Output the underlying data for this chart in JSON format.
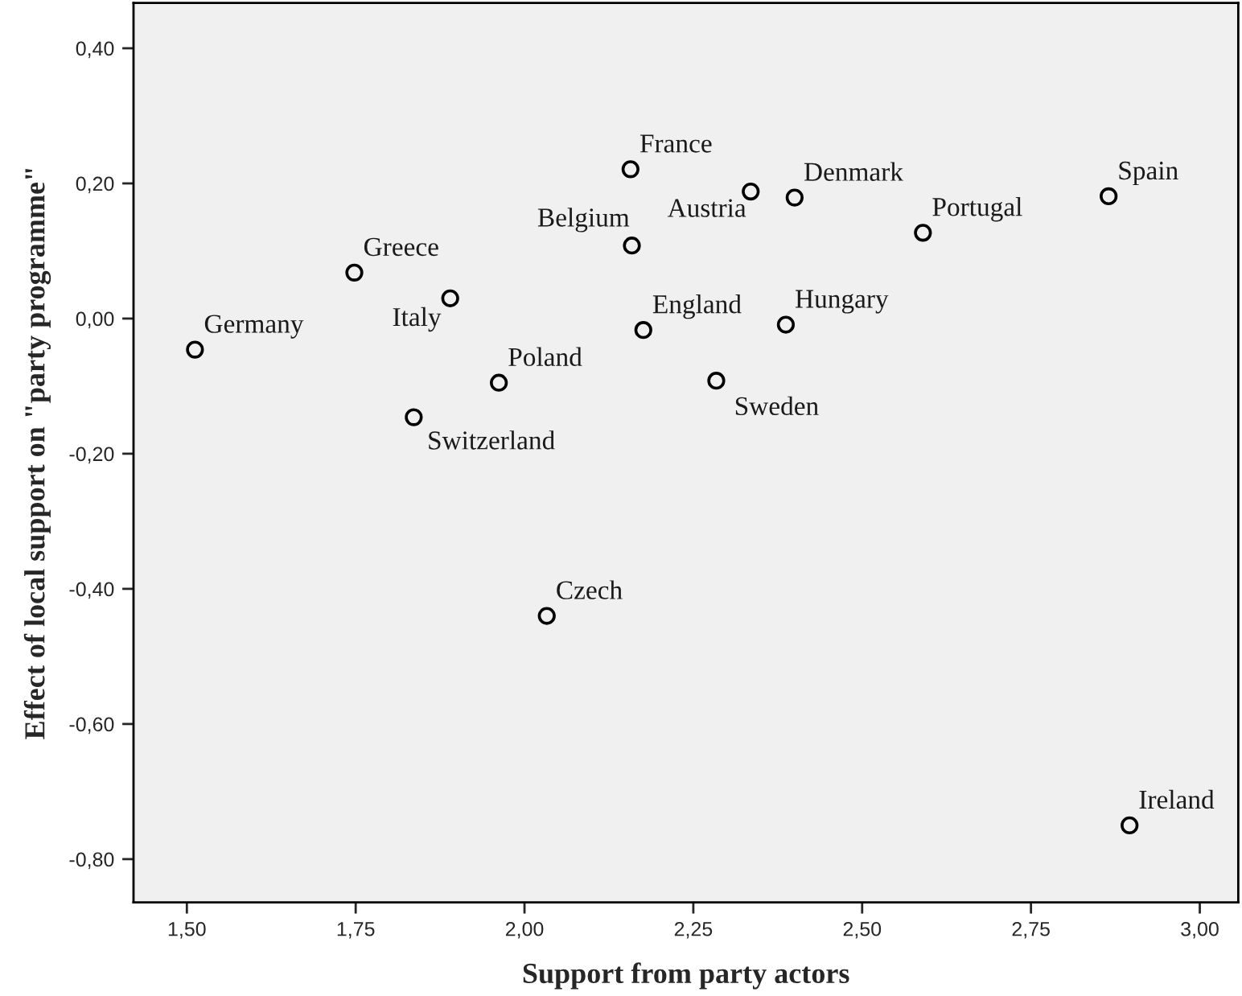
{
  "chart_data": {
    "type": "scatter",
    "xlabel": "Support from party actors",
    "ylabel": "Effect of local support on \"party programme\"",
    "marker": "circle",
    "grid": false,
    "legend": false,
    "series": [
      {
        "color": "#000000",
        "x": [
          1.512,
          1.748,
          1.89,
          1.836,
          1.962,
          2.033,
          2.157,
          2.159,
          2.176,
          2.335,
          2.284,
          2.387,
          2.4,
          2.59,
          2.865,
          2.896
        ],
        "values": [
          -0.046,
          0.068,
          0.03,
          -0.146,
          -0.095,
          -0.44,
          0.221,
          0.108,
          -0.017,
          0.188,
          -0.092,
          -0.009,
          0.179,
          0.127,
          0.181,
          -0.75
        ]
      }
    ],
    "annotations": [
      {
        "text": "Germany",
        "x": 1.512,
        "y": -0.046
      },
      {
        "text": "Greece",
        "x": 1.748,
        "y": 0.068
      },
      {
        "text": "Italy",
        "x": 1.89,
        "y": 0.03
      },
      {
        "text": "Switzerland",
        "x": 1.836,
        "y": -0.146
      },
      {
        "text": "Poland",
        "x": 1.962,
        "y": -0.095
      },
      {
        "text": "Czech",
        "x": 2.033,
        "y": -0.44
      },
      {
        "text": "France",
        "x": 2.157,
        "y": 0.221
      },
      {
        "text": "Belgium",
        "x": 2.159,
        "y": 0.108
      },
      {
        "text": "England",
        "x": 2.176,
        "y": -0.017
      },
      {
        "text": "Austria",
        "x": 2.335,
        "y": 0.188
      },
      {
        "text": "Sweden",
        "x": 2.284,
        "y": -0.092
      },
      {
        "text": "Hungary",
        "x": 2.387,
        "y": -0.009
      },
      {
        "text": "Denmark",
        "x": 2.4,
        "y": 0.179
      },
      {
        "text": "Portugal",
        "x": 2.59,
        "y": 0.127
      },
      {
        "text": "Spain",
        "x": 2.865,
        "y": 0.181
      },
      {
        "text": "Ireland",
        "x": 2.896,
        "y": -0.75
      }
    ],
    "xlim": [
      1.421,
      3.057
    ],
    "ylim": [
      -0.864,
      0.467
    ],
    "xticks": [
      {
        "value": 1.5,
        "label": "1,50"
      },
      {
        "value": 1.75,
        "label": "1,75"
      },
      {
        "value": 2.0,
        "label": "2,00"
      },
      {
        "value": 2.25,
        "label": "2,25"
      },
      {
        "value": 2.5,
        "label": "2,50"
      },
      {
        "value": 2.75,
        "label": "2,75"
      },
      {
        "value": 3.0,
        "label": "3,00"
      }
    ],
    "yticks": [
      {
        "value": -0.8,
        "label": "-0,80"
      },
      {
        "value": -0.6,
        "label": "-0,60"
      },
      {
        "value": -0.4,
        "label": "-0,40"
      },
      {
        "value": -0.2,
        "label": "-0,20"
      },
      {
        "value": 0.0,
        "label": "0,00"
      },
      {
        "value": 0.2,
        "label": "0,20"
      },
      {
        "value": 0.4,
        "label": "0,40"
      }
    ]
  }
}
